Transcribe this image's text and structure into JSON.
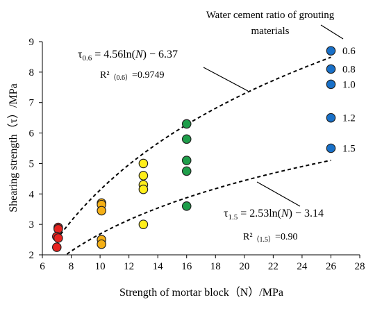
{
  "chart_data": {
    "type": "scatter",
    "xlabel": "Strength of mortar block（N）/MPa",
    "ylabel": "Shearing strength（τ）/MPa",
    "xlim": [
      6,
      28
    ],
    "ylim": [
      2,
      9
    ],
    "x_ticks": [
      "6",
      "8",
      "10",
      "12",
      "14",
      "16",
      "18",
      "20",
      "22",
      "24",
      "26",
      "28"
    ],
    "y_ticks": [
      "2",
      "3",
      "4",
      "5",
      "6",
      "7",
      "8",
      "9"
    ],
    "grid": false,
    "legend_title": [
      "Water cement ratio of grouting",
      "materials"
    ],
    "series": [
      {
        "color": "#e8231f",
        "points": [
          [
            7.1,
            2.9
          ],
          [
            7.1,
            2.85
          ],
          [
            7.0,
            2.6
          ],
          [
            7.1,
            2.55
          ],
          [
            7.0,
            2.25
          ]
        ]
      },
      {
        "color": "#f5b016",
        "points": [
          [
            10.1,
            3.7
          ],
          [
            10.1,
            3.65
          ],
          [
            10.1,
            3.45
          ],
          [
            10.1,
            2.5
          ],
          [
            10.1,
            2.35
          ]
        ]
      },
      {
        "color": "#ffee1a",
        "points": [
          [
            13.0,
            5.0
          ],
          [
            13.0,
            4.6
          ],
          [
            13.0,
            4.3
          ],
          [
            13.0,
            4.15
          ],
          [
            13.0,
            3.0
          ]
        ]
      },
      {
        "color": "#1e9e4a",
        "points": [
          [
            16.0,
            6.3
          ],
          [
            16.0,
            5.8
          ],
          [
            16.0,
            5.1
          ],
          [
            16.0,
            4.75
          ],
          [
            16.0,
            3.6
          ]
        ]
      },
      {
        "color": "#1870c8",
        "points": [
          [
            26.0,
            8.7
          ],
          [
            26.0,
            8.1
          ],
          [
            26.0,
            7.6
          ],
          [
            26.0,
            6.5
          ],
          [
            26.0,
            5.5
          ]
        ]
      }
    ],
    "water_cement_labels": [
      {
        "text": "0.6",
        "y": 8.7
      },
      {
        "text": "0.8",
        "y": 8.1
      },
      {
        "text": "1.0",
        "y": 7.6
      },
      {
        "text": "1.2",
        "y": 6.5
      },
      {
        "text": "1.5",
        "y": 5.5
      }
    ],
    "fits": [
      {
        "a": 4.56,
        "b": -6.37,
        "x_range": [
          7,
          26
        ]
      },
      {
        "a": 2.53,
        "b": -3.14,
        "x_range": [
          7.7,
          26
        ]
      }
    ],
    "annotations": {
      "eq06": {
        "sym": "τ",
        "sub": "0.6",
        "rhs_a": " = 4.56ln(",
        "var": "N",
        "rhs_b": ") − 6.37"
      },
      "r2_06": {
        "main": "R²",
        "sub": "（0.6）",
        "rest": "=0.9749"
      },
      "eq15": {
        "sym": "τ",
        "sub": "1.5",
        "rhs_a": " = 2.53ln(",
        "var": "N",
        "rhs_b": ") − 3.14"
      },
      "r2_15": {
        "main": "R²",
        "sub": "（1.5）",
        "rest": "=0.90"
      }
    }
  }
}
